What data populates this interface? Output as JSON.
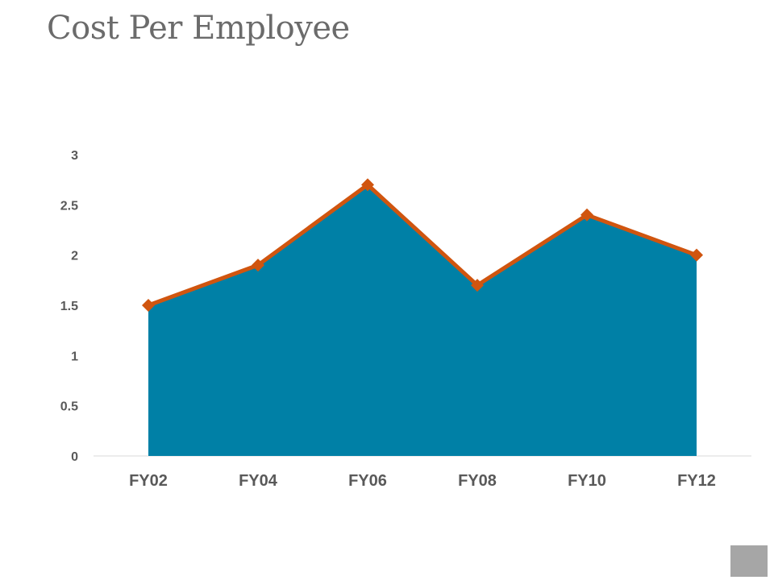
{
  "title": "Cost Per Employee",
  "chart_data": {
    "type": "area",
    "categories": [
      "FY02",
      "FY04",
      "FY06",
      "FY08",
      "FY10",
      "FY12"
    ],
    "values": [
      1.5,
      1.9,
      2.7,
      1.7,
      2.4,
      2.0
    ],
    "ylim": [
      0,
      3
    ],
    "yticks": [
      "0",
      "0.5",
      "1",
      "1.5",
      "2",
      "2.5",
      "3"
    ],
    "grid": false,
    "legend": "none",
    "colors": {
      "area_fill": "#0080A6",
      "line": "#D0550F",
      "marker": "#D0550F",
      "baseline": "#d9d9d9",
      "tick_text": "#595959"
    }
  }
}
